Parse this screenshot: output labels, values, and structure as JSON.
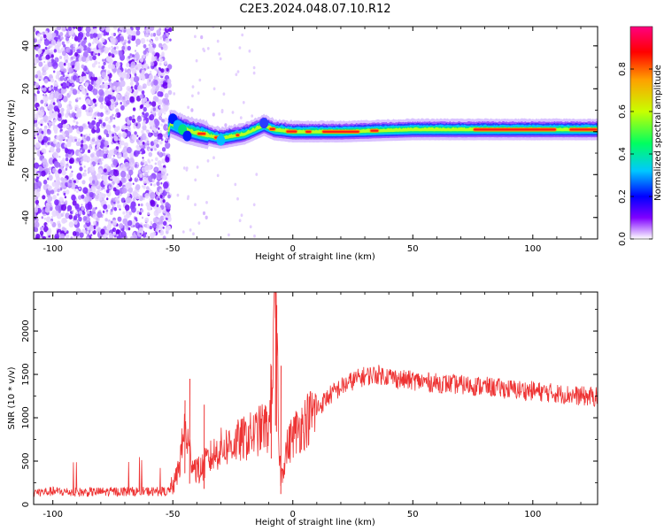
{
  "title": "C2E3.2024.048.07.10.R12",
  "chart_data": [
    {
      "type": "heatmap",
      "xlabel": "Height of straight line (km)",
      "ylabel": "Frequency (Hz)",
      "xlim": [
        -108,
        127
      ],
      "ylim": [
        -50,
        49
      ],
      "x_ticks": [
        "-100",
        "-50",
        "0",
        "50",
        "100"
      ],
      "x_tick_values": [
        -100,
        -50,
        0,
        50,
        100
      ],
      "y_ticks": [
        "-40",
        "-20",
        "0",
        "20",
        "40"
      ],
      "y_tick_values": [
        -40,
        -20,
        0,
        20,
        40
      ],
      "colorbar": {
        "label": "Normalized spectral amplitude",
        "range": [
          0,
          1
        ],
        "ticks": [
          "0.0",
          "0.2",
          "0.4",
          "0.6",
          "0.8"
        ],
        "tick_values": [
          0.0,
          0.2,
          0.4,
          0.6,
          0.8
        ],
        "colormap": [
          "#ffffff",
          "#7f00ff",
          "#0000ff",
          "#00c8ff",
          "#00ff60",
          "#c8ff00",
          "#ffa000",
          "#ff0000",
          "#ff0080"
        ]
      },
      "noise_region_km": [
        -108,
        -51
      ],
      "ridge": [
        {
          "x": -51,
          "f": 4
        },
        {
          "x": -45,
          "f": 1
        },
        {
          "x": -38,
          "f": -1
        },
        {
          "x": -30,
          "f": -3
        },
        {
          "x": -20,
          "f": -1
        },
        {
          "x": -12,
          "f": 3
        },
        {
          "x": -8,
          "f": 1
        },
        {
          "x": 0,
          "f": 0
        },
        {
          "x": 20,
          "f": 0
        },
        {
          "x": 50,
          "f": 1
        },
        {
          "x": 80,
          "f": 1
        },
        {
          "x": 110,
          "f": 1
        },
        {
          "x": 127,
          "f": 1
        }
      ],
      "grid": false
    },
    {
      "type": "line",
      "xlabel": "Height of straight line (km)",
      "ylabel": "SNR (10 * v/v)",
      "xlim": [
        -108,
        127
      ],
      "ylim": [
        0,
        2450
      ],
      "x_ticks": [
        "-100",
        "-50",
        "0",
        "50",
        "100"
      ],
      "x_tick_values": [
        -100,
        -50,
        0,
        50,
        100
      ],
      "y_ticks": [
        "0",
        "500",
        "1000",
        "1500",
        "2000"
      ],
      "y_tick_values": [
        0,
        500,
        1000,
        1500,
        2000
      ],
      "series": [
        {
          "color": "#ee3333",
          "x": [
            -108,
            -100,
            -90,
            -80,
            -70,
            -60,
            -52,
            -49,
            -47,
            -45,
            -43,
            -41,
            -39,
            -35,
            -30,
            -25,
            -20,
            -15,
            -12,
            -10,
            -8,
            -7,
            -6,
            -5,
            -3,
            0,
            5,
            10,
            15,
            20,
            25,
            30,
            35,
            40,
            45,
            50,
            60,
            70,
            80,
            90,
            100,
            110,
            120,
            127
          ],
          "y": [
            140,
            150,
            140,
            145,
            150,
            150,
            150,
            260,
            500,
            900,
            600,
            450,
            380,
            520,
            650,
            700,
            760,
            830,
            900,
            850,
            1800,
            2400,
            900,
            300,
            600,
            800,
            950,
            1100,
            1250,
            1350,
            1430,
            1480,
            1500,
            1480,
            1440,
            1430,
            1400,
            1380,
            1360,
            1330,
            1310,
            1280,
            1250,
            1240
          ],
          "noise_band": [
            -108,
            -51
          ]
        }
      ],
      "grid": false
    }
  ]
}
